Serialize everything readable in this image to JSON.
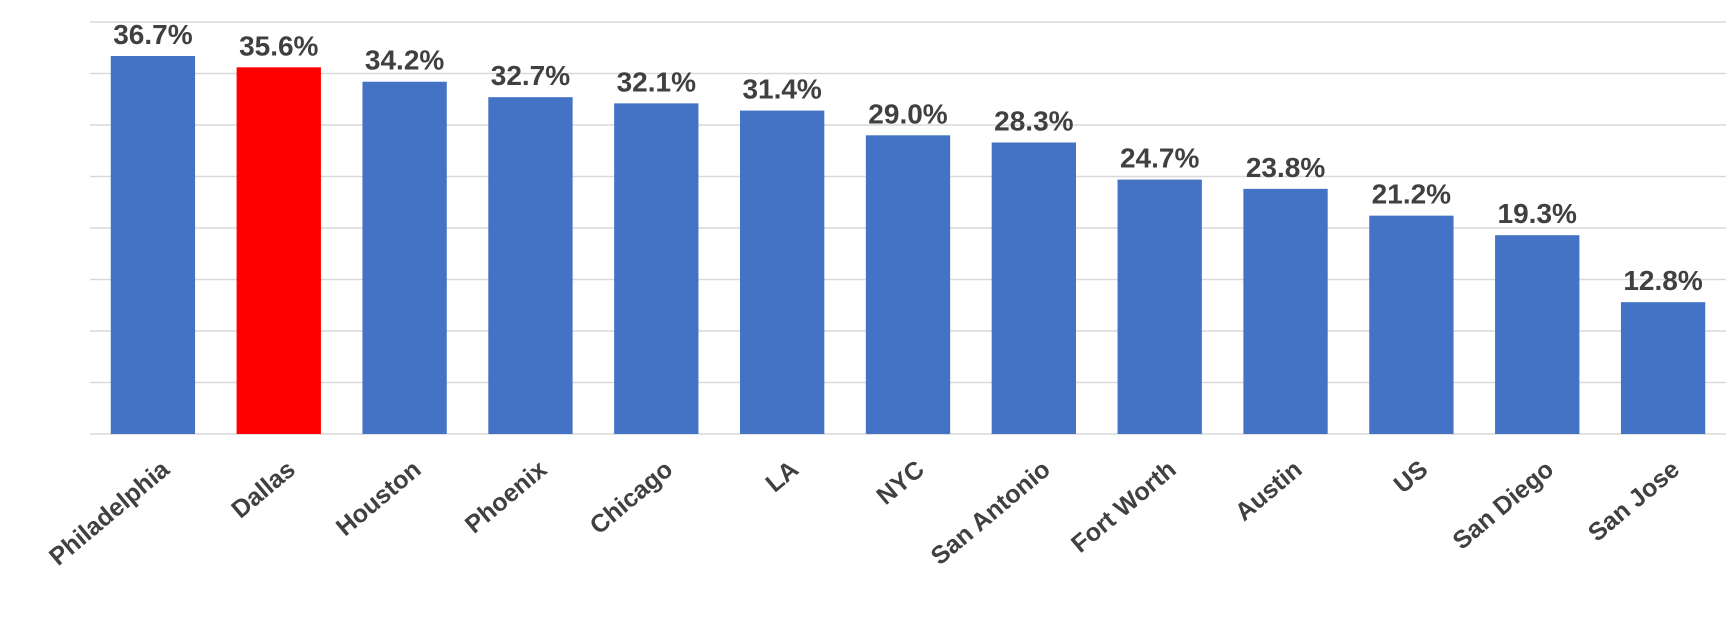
{
  "chart_data": {
    "type": "bar",
    "categories": [
      "Philadelphia",
      "Dallas",
      "Houston",
      "Phoenix",
      "Chicago",
      "LA",
      "NYC",
      "San Antonio",
      "Fort Worth",
      "Austin",
      "US",
      "San Diego",
      "San Jose"
    ],
    "values": [
      36.7,
      35.6,
      34.2,
      32.7,
      32.1,
      31.4,
      29.0,
      28.3,
      24.7,
      23.8,
      21.2,
      19.3,
      12.8
    ],
    "value_labels": [
      "36.7%",
      "35.6%",
      "34.2%",
      "32.7%",
      "32.1%",
      "31.4%",
      "29.0%",
      "28.3%",
      "24.7%",
      "23.8%",
      "21.2%",
      "19.3%",
      "12.8%"
    ],
    "colors": [
      "#4472c4",
      "#ff0000",
      "#4472c4",
      "#4472c4",
      "#4472c4",
      "#4472c4",
      "#4472c4",
      "#4472c4",
      "#4472c4",
      "#4472c4",
      "#4472c4",
      "#4472c4",
      "#4472c4"
    ],
    "ylim": [
      0,
      40
    ],
    "yticks": [
      0,
      5,
      10,
      15,
      20,
      25,
      30,
      35,
      40
    ],
    "grid": true
  }
}
